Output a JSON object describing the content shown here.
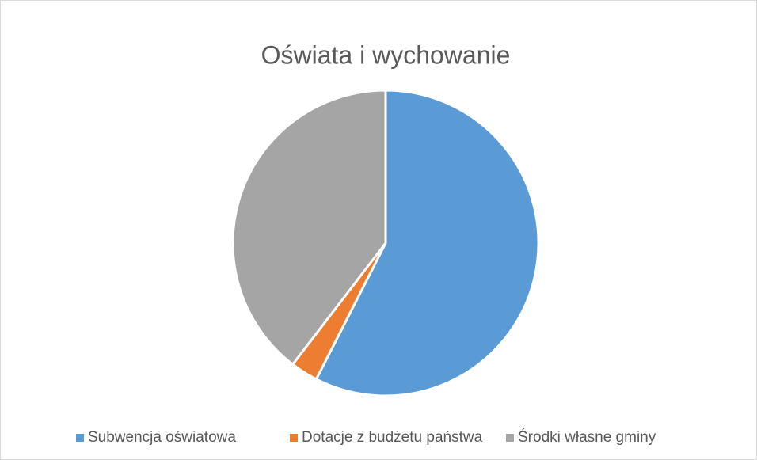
{
  "chart_data": {
    "type": "pie",
    "title": "Oświata i wychowanie",
    "categories": [
      "Subwencja oświatowa",
      "Dotacje z budżetu państwa",
      "Środki własne gminy"
    ],
    "values": [
      57.5,
      2.9,
      39.6
    ],
    "colors": [
      "#5b9bd5",
      "#ed7d31",
      "#a5a5a5"
    ],
    "legend": "bottom"
  }
}
